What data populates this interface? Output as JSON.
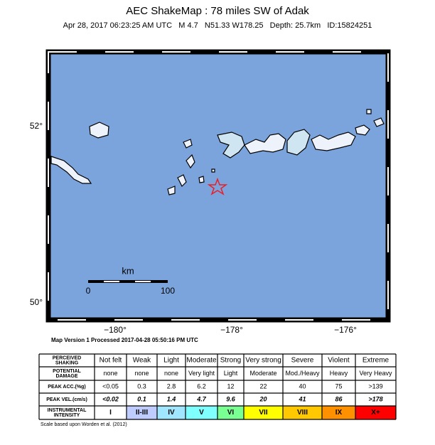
{
  "header": {
    "title": "AEC ShakeMap : 78 miles SW of Adak",
    "subtitle": "Apr 28, 2017 06:23:25 AM UTC   M 4.7   N51.33 W178.25   Depth: 25.7km   ID:15824251"
  },
  "map": {
    "lat_labels": [
      "52°",
      "50°"
    ],
    "lon_labels": [
      "−180°",
      "−178°",
      "−176°"
    ],
    "scale": {
      "unit": "km",
      "labels": [
        "0",
        "100"
      ]
    },
    "version": "Map Version 1 Processed 2017-04-28 05:50:16 PM UTC"
  },
  "table": {
    "rows": [
      {
        "label": [
          "PERCEIVED",
          "SHAKING"
        ],
        "cells": [
          "Not felt",
          "Weak",
          "Light",
          "Moderate",
          "Strong",
          "Very strong",
          "Severe",
          "Violent",
          "Extreme"
        ]
      },
      {
        "label": [
          "POTENTIAL",
          "DAMAGE"
        ],
        "cells": [
          "none",
          "none",
          "none",
          "Very light",
          "Light",
          "Moderate",
          "Mod./Heavy",
          "Heavy",
          "Very Heavy"
        ]
      },
      {
        "label": [
          "PEAK ACC.(%g)"
        ],
        "cells": [
          "<0.05",
          "0.3",
          "2.8",
          "6.2",
          "12",
          "22",
          "40",
          "75",
          ">139"
        ]
      },
      {
        "label": [
          "PEAK VEL.(cm/s)"
        ],
        "cells": [
          "<0.02",
          "0.1",
          "1.4",
          "4.7",
          "9.6",
          "20",
          "41",
          "86",
          ">178"
        ]
      },
      {
        "label": [
          "INSTRUMENTAL",
          "INTENSITY"
        ],
        "cells": [
          "I",
          "II-III",
          "IV",
          "V",
          "VI",
          "VII",
          "VIII",
          "IX",
          "X+"
        ],
        "colors": [
          "#ffffff",
          "#bfccff",
          "#a0e6ff",
          "#80ffff",
          "#7aff93",
          "#ffff00",
          "#ffc800",
          "#ff9100",
          "#ff0000"
        ]
      }
    ]
  },
  "footer": "Scale based upon Worden et al. (2012)"
}
